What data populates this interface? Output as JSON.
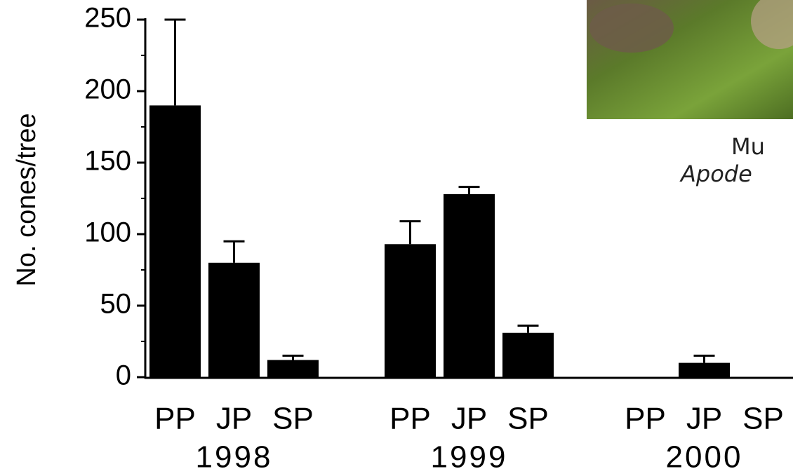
{
  "chart_data": {
    "type": "bar",
    "ylabel": "No. cones/tree",
    "ylim": [
      0,
      250
    ],
    "yticks": [
      0,
      50,
      100,
      150,
      200,
      250
    ],
    "minor_yticks": [
      25,
      75,
      125,
      175,
      225
    ],
    "color": "#000000",
    "groups": [
      {
        "name": "1998",
        "categories": [
          "PP",
          "JP",
          "SP"
        ],
        "values": [
          190,
          80,
          12
        ],
        "errors": [
          60,
          15,
          3
        ]
      },
      {
        "name": "1999",
        "categories": [
          "PP",
          "JP",
          "SP"
        ],
        "values": [
          93,
          128,
          31
        ],
        "errors": [
          16,
          5,
          5
        ]
      },
      {
        "name": "2000",
        "categories": [
          "PP",
          "JP",
          "SP"
        ],
        "values": [
          0,
          10,
          0
        ],
        "errors": [
          0,
          5,
          0
        ]
      }
    ],
    "annotations": [
      "Mu",
      "Apode"
    ]
  }
}
